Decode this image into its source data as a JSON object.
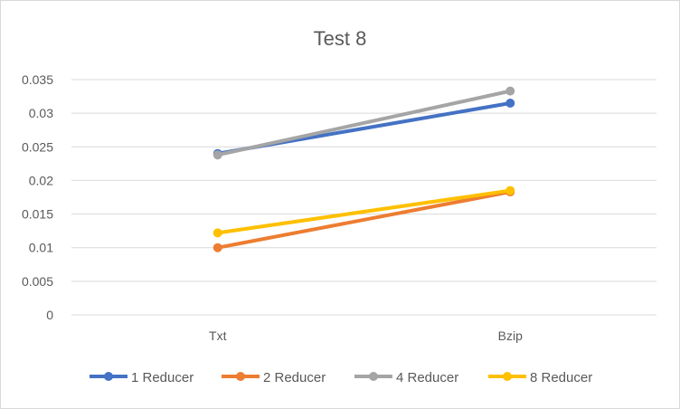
{
  "chart_data": {
    "type": "line",
    "title": "Test 8",
    "xlabel": "",
    "ylabel": "",
    "categories": [
      "Txt",
      "Bzip"
    ],
    "ylim": [
      0,
      0.035
    ],
    "yticks": [
      "0",
      "0.005",
      "0.01",
      "0.015",
      "0.02",
      "0.025",
      "0.03",
      "0.035"
    ],
    "ytick_values": [
      0,
      0.005,
      0.01,
      0.015,
      0.02,
      0.025,
      0.03,
      0.035
    ],
    "grid": true,
    "legend_position": "bottom",
    "series": [
      {
        "name": "1 Reducer",
        "color": "#4472c4",
        "values": [
          0.024,
          0.0315
        ]
      },
      {
        "name": "2 Reducer",
        "color": "#ed7d31",
        "values": [
          0.01,
          0.0183
        ]
      },
      {
        "name": "4 Reducer",
        "color": "#a5a5a5",
        "values": [
          0.0238,
          0.0333
        ]
      },
      {
        "name": "8 Reducer",
        "color": "#ffc000",
        "values": [
          0.0122,
          0.0185
        ]
      }
    ]
  }
}
